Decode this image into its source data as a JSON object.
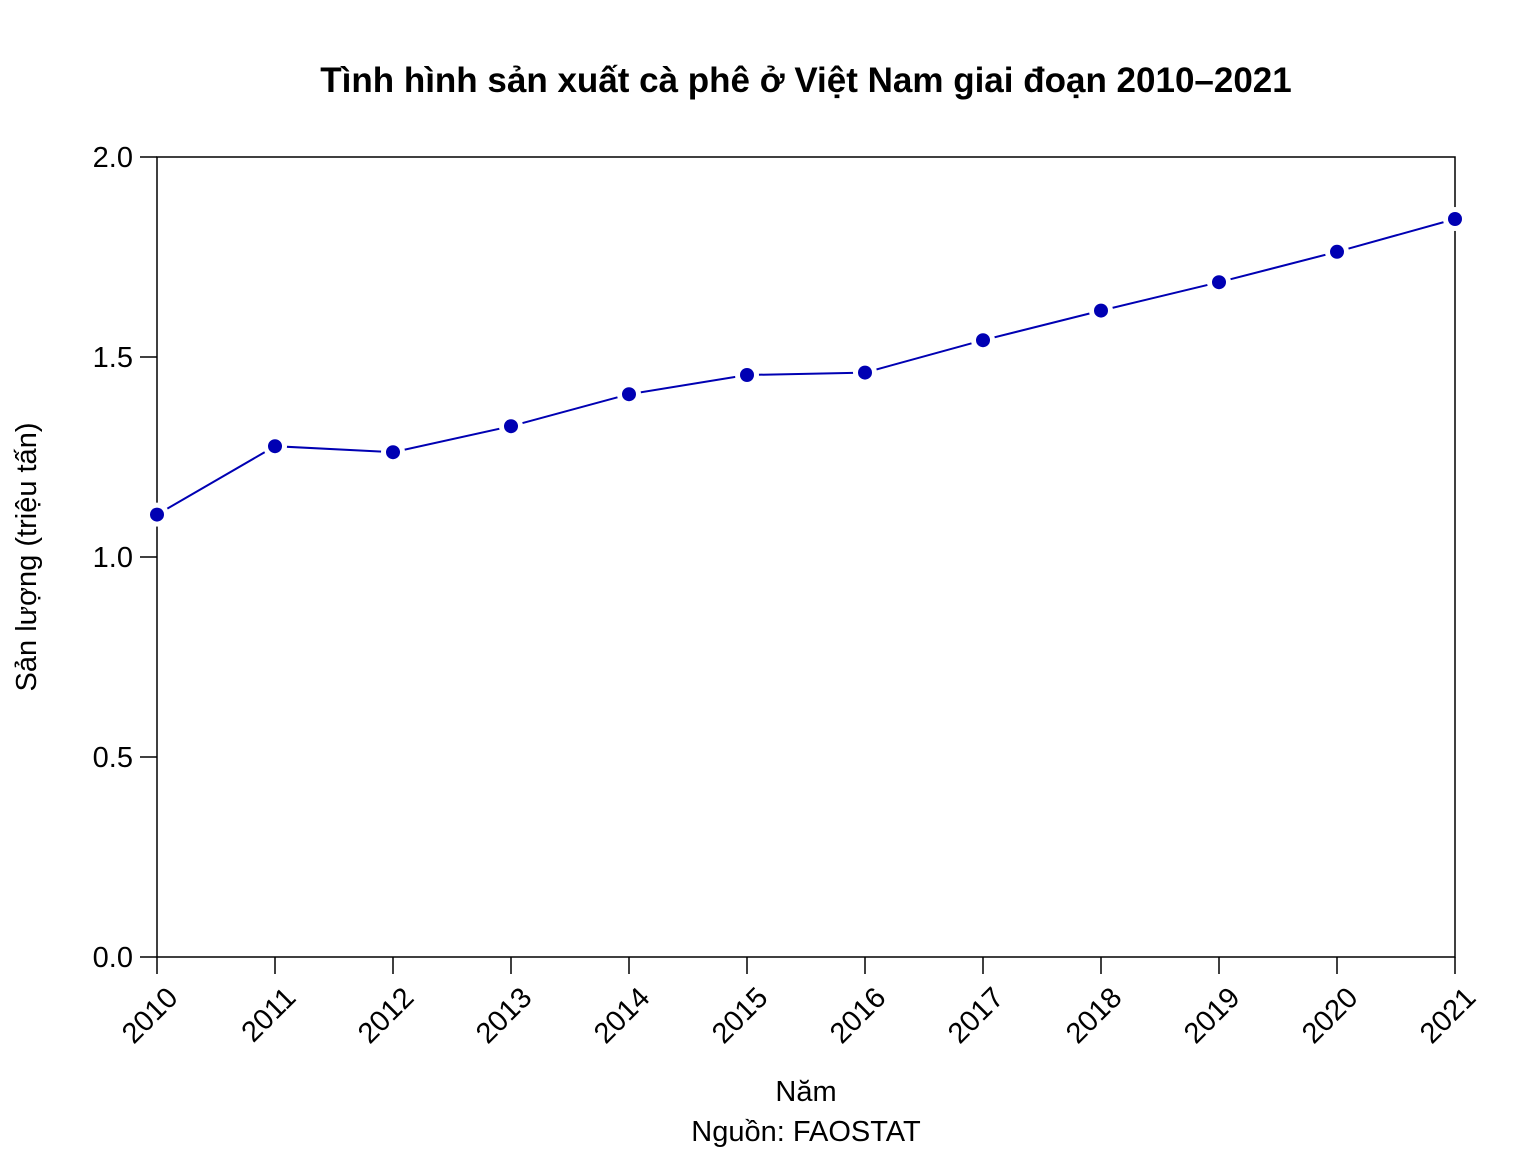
{
  "chart_data": {
    "type": "line",
    "title": "Tình hình sản xuất cà phê ở Việt Nam giai đoạn 2010–2021",
    "xlabel": "Năm",
    "caption": "Nguồn: FAOSTAT",
    "ylabel": "Sản lượng (triệu tấn)",
    "x": [
      "2010",
      "2011",
      "2012",
      "2013",
      "2014",
      "2015",
      "2016",
      "2017",
      "2018",
      "2019",
      "2020",
      "2021"
    ],
    "series": [
      {
        "values": [
          1.106,
          1.277,
          1.262,
          1.327,
          1.407,
          1.455,
          1.461,
          1.542,
          1.616,
          1.687,
          1.763,
          1.845
        ],
        "color": "#0000b3"
      }
    ],
    "ylim": [
      0,
      2
    ],
    "yticks": [
      "0.0",
      "0.5",
      "1.0",
      "1.5",
      "2.0"
    ],
    "grid": false,
    "legend": "none"
  }
}
